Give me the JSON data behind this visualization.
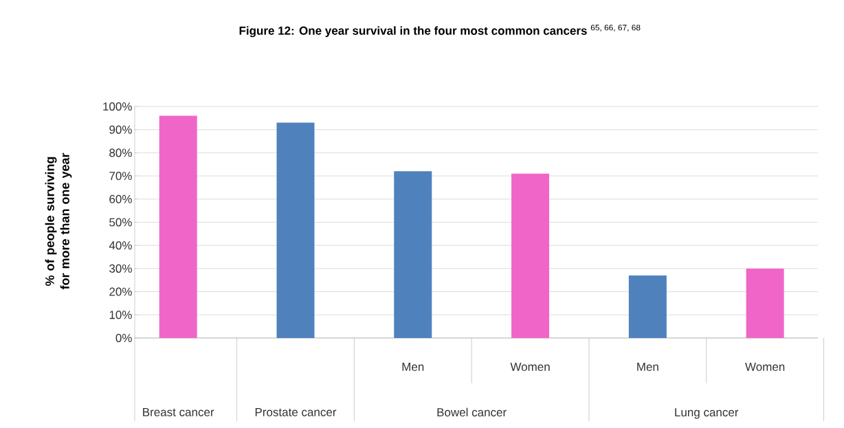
{
  "chart_data": {
    "type": "bar",
    "title": "**Figure 12: One year survival in the four most common cancers** $^{65, 66, 67, 68}$",
    "ylabel": "% of people surviving for more than one year",
    "categories": [
      null,
      null,
      "Men",
      "Women",
      "Men",
      "Women"
    ],
    "annotations": [
      "Breast cancer",
      "Prostate cancer",
      "Bowel cancer",
      "Lung cancer"
    ],
    "values": [
      96,
      93,
      72,
      71,
      27,
      30
    ],
    "colors": [
      "#f066c8",
      "#4f81bd",
      "#4f81bd",
      "#f066c8",
      "#4f81bd",
      "#f066c8"
    ],
    "ylim": [
      0,
      100
    ],
    "yticks": [
      {
        "value": 0,
        "label": "0%"
      },
      {
        "value": 10,
        "label": "10%"
      },
      {
        "value": 20,
        "label": "20%"
      },
      {
        "value": 30,
        "label": "30%"
      },
      {
        "value": 40,
        "label": "40%"
      },
      {
        "value": 50,
        "label": "50%"
      },
      {
        "value": 60,
        "label": "60%"
      },
      {
        "value": 70,
        "label": "70%"
      },
      {
        "value": 80,
        "label": "80%"
      },
      {
        "value": 90,
        "label": "90%"
      },
      {
        "value": 100,
        "label": "100%"
      }
    ],
    "grid": "y"
  }
}
